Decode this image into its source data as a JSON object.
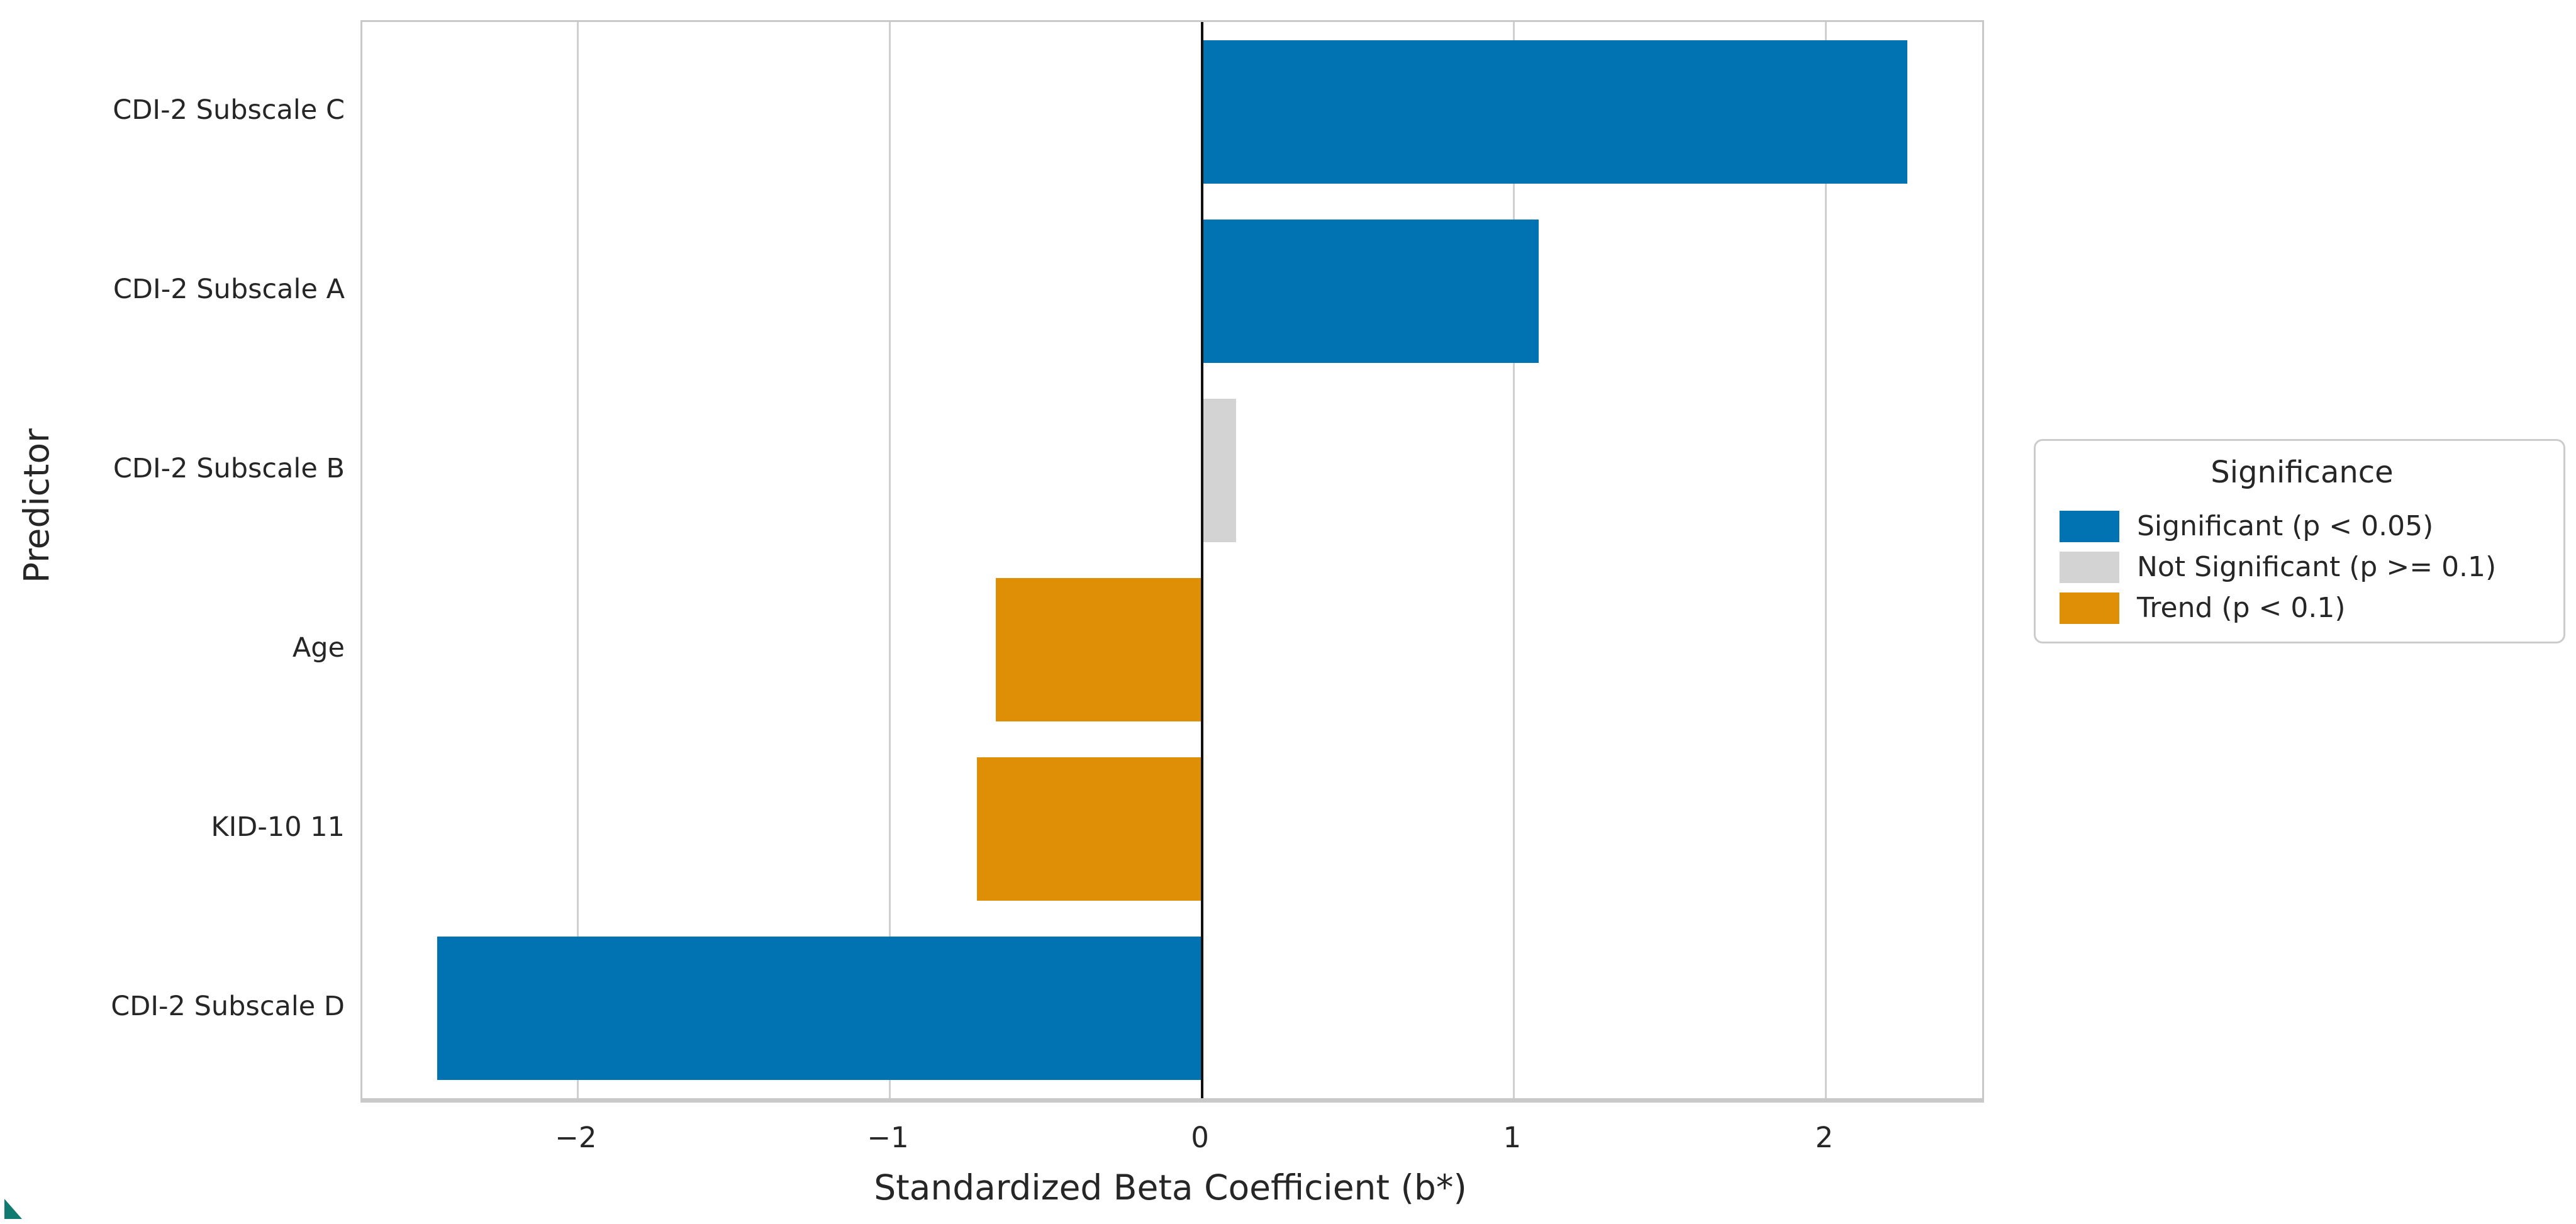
{
  "colors": {
    "significant": "#0173b2",
    "not_significant": "#d3d3d3",
    "trend": "#de8f05",
    "gridline": "#cfcfcf",
    "zero_line": "#111111",
    "artifact_teal": "#117a70"
  },
  "chart_data": {
    "type": "bar",
    "orientation": "horizontal",
    "title": "",
    "xlabel": "Standardized Beta Coefficient (b*)",
    "ylabel": "Predictor",
    "categories": [
      "CDI-2 Subscale C",
      "CDI-2 Subscale A",
      "CDI-2 Subscale B",
      "Age",
      "KID-10 11",
      "CDI-2 Subscale D"
    ],
    "values": [
      2.26,
      1.08,
      0.11,
      -0.66,
      -0.72,
      -2.45
    ],
    "significance": [
      "significant",
      "significant",
      "not_significant",
      "trend",
      "trend",
      "significant"
    ],
    "xlim": [
      -2.69,
      2.5
    ],
    "xticks": [
      -2,
      -1,
      0,
      1,
      2
    ],
    "xtick_labels": [
      "−2",
      "−1",
      "0",
      "1",
      "2"
    ],
    "grid": "vertical-only",
    "legend": {
      "title": "Significance",
      "position": "right",
      "items": [
        {
          "label": "Significant (p < 0.05)",
          "key": "significant"
        },
        {
          "label": "Not Significant (p >= 0.1)",
          "key": "not_significant"
        },
        {
          "label": "Trend (p < 0.1)",
          "key": "trend"
        }
      ]
    }
  }
}
